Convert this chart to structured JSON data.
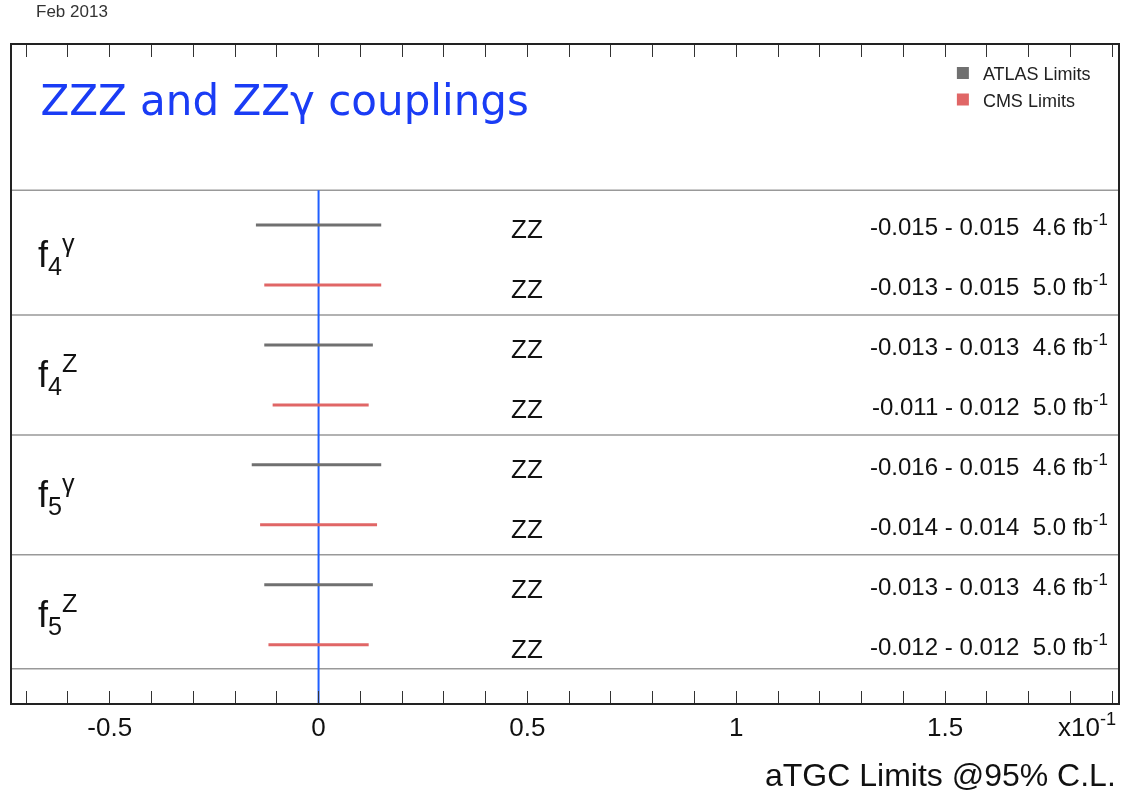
{
  "chart_data": {
    "type": "bar",
    "orientation": "horizontal",
    "title": "ZZZ and ZZγ couplings",
    "subtitle": "Feb 2013",
    "xlabel": "aTGC Limits @95% C.L.",
    "categories": [
      "f$_{4}$$^{γ}$",
      "f$_{4}$$^{Z}$",
      "f$_{5}$$^{γ}$",
      "f$_{5}$$^{Z}$"
    ],
    "series": [
      {
        "name": "ATLAS Limits",
        "color": "#707070",
        "base": [
          -0.15,
          -0.13,
          -0.16,
          -0.13
        ],
        "values": [
          0.3,
          0.26,
          0.31,
          0.26
        ]
      },
      {
        "name": "CMS Limits",
        "color": "#e06666",
        "base": [
          -0.13,
          -0.11,
          -0.14,
          -0.12
        ],
        "values": [
          0.28,
          0.23,
          0.28,
          0.24
        ]
      }
    ],
    "xlim": [
      -0.734,
      1.914
    ],
    "xticks": [
      {
        "value": -0.7,
        "label": null
      },
      {
        "value": -0.6,
        "label": null
      },
      -0.5,
      {
        "value": -0.4,
        "label": null
      },
      {
        "value": -0.3,
        "label": null
      },
      {
        "value": -0.2,
        "label": null
      },
      {
        "value": -0.1,
        "label": null
      },
      0,
      {
        "value": 0.1,
        "label": null
      },
      {
        "value": 0.2,
        "label": null
      },
      {
        "value": 0.3,
        "label": null
      },
      {
        "value": 0.4,
        "label": null
      },
      0.5,
      {
        "value": 0.6,
        "label": null
      },
      {
        "value": 0.7,
        "label": null
      },
      {
        "value": 0.8,
        "label": null
      },
      {
        "value": 0.9,
        "label": null
      },
      1,
      {
        "value": 1.1,
        "label": null
      },
      {
        "value": 1.2,
        "label": null
      },
      {
        "value": 1.3,
        "label": null
      },
      {
        "value": 1.4,
        "label": null
      },
      1.5,
      {
        "value": 1.6,
        "label": null
      },
      {
        "value": 1.7,
        "label": null
      },
      {
        "value": 1.8,
        "label": null
      },
      {
        "value": 1.9,
        "label": null
      }
    ],
    "annotations": [
      "x10$^{-1}$",
      "ZZ",
      "-0.015 - 0.015  4.6 fb$^{-1}$",
      "ZZ",
      "-0.013 - 0.015  5.0 fb$^{-1}$",
      "ZZ",
      "-0.013 - 0.013  4.6 fb$^{-1}$",
      "ZZ",
      "-0.011 - 0.012  5.0 fb$^{-1}$",
      "ZZ",
      "-0.016 - 0.015  4.6 fb$^{-1}$",
      "ZZ",
      "-0.014 - 0.014  5.0 fb$^{-1}$",
      "ZZ",
      "-0.013 - 0.013  4.6 fb$^{-1}$",
      "ZZ",
      "-0.012 - 0.012  5.0 fb$^{-1}$"
    ],
    "ref_lines": [
      {
        "axis": "x",
        "value": 0,
        "color": "#1f5fff"
      }
    ],
    "legend": "top right",
    "grid": false
  }
}
